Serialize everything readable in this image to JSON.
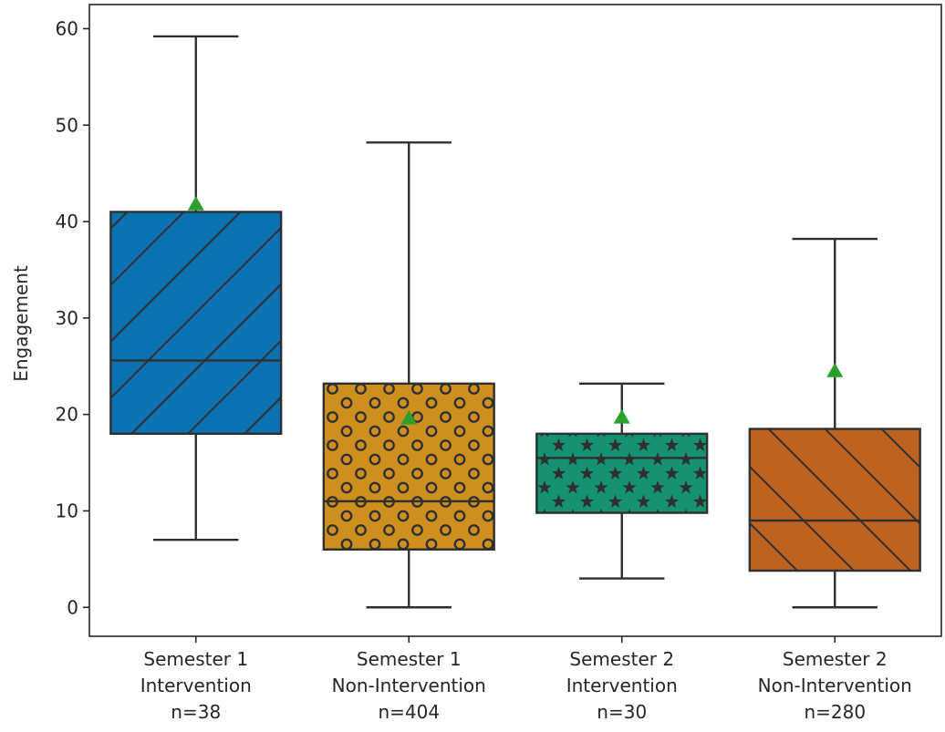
{
  "chart_data": {
    "type": "box",
    "ylabel": "Engagement",
    "xlabel": "",
    "ylim": [
      -3,
      62.5
    ],
    "yticks": [
      0,
      10,
      20,
      30,
      40,
      50,
      60
    ],
    "grid": false,
    "legend": "none",
    "mean_marker": {
      "shape": "triangle",
      "color": "#2ca02c"
    },
    "groups": [
      {
        "label_lines": [
          "Semester 1",
          "Intervention",
          "n=38"
        ],
        "color": "#0b72b2",
        "hatch": "diagonal-forward",
        "whisker_low": 7,
        "q1": 18,
        "median": 25.6,
        "q3": 41,
        "whisker_high": 59.2,
        "mean": 41.8
      },
      {
        "label_lines": [
          "Semester 1",
          "Non-Intervention",
          "n=404"
        ],
        "color": "#cf8f1f",
        "hatch": "circles",
        "whisker_low": 0,
        "q1": 6,
        "median": 11,
        "q3": 23.2,
        "whisker_high": 48.2,
        "mean": 19.6
      },
      {
        "label_lines": [
          "Semester 2",
          "Intervention",
          "n=30"
        ],
        "color": "#149272",
        "hatch": "stars",
        "whisker_low": 3,
        "q1": 9.8,
        "median": 15.5,
        "q3": 18,
        "whisker_high": 23.2,
        "mean": 19.7
      },
      {
        "label_lines": [
          "Semester 2",
          "Non-Intervention",
          "n=280"
        ],
        "color": "#bd6221",
        "hatch": "diagonal-back",
        "whisker_low": 0,
        "q1": 3.8,
        "median": 9,
        "q3": 18.5,
        "whisker_high": 38.2,
        "mean": 24.5
      }
    ]
  }
}
